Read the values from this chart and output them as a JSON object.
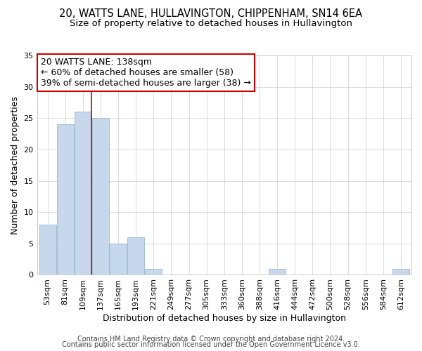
{
  "title": "20, WATTS LANE, HULLAVINGTON, CHIPPENHAM, SN14 6EA",
  "subtitle": "Size of property relative to detached houses in Hullavington",
  "xlabel": "Distribution of detached houses by size in Hullavington",
  "ylabel": "Number of detached properties",
  "bar_color": "#c8d8ec",
  "bar_edge_color": "#9ab8d0",
  "vline_color": "#cc0000",
  "vline_x": 3,
  "categories": [
    "53sqm",
    "81sqm",
    "109sqm",
    "137sqm",
    "165sqm",
    "193sqm",
    "221sqm",
    "249sqm",
    "277sqm",
    "305sqm",
    "333sqm",
    "360sqm",
    "388sqm",
    "416sqm",
    "444sqm",
    "472sqm",
    "500sqm",
    "528sqm",
    "556sqm",
    "584sqm",
    "612sqm"
  ],
  "values": [
    8,
    24,
    26,
    25,
    5,
    6,
    1,
    0,
    0,
    0,
    0,
    0,
    0,
    1,
    0,
    0,
    0,
    0,
    0,
    0,
    1
  ],
  "ylim": [
    0,
    35
  ],
  "yticks": [
    0,
    5,
    10,
    15,
    20,
    25,
    30,
    35
  ],
  "annotation_title": "20 WATTS LANE: 138sqm",
  "annotation_line1": "← 60% of detached houses are smaller (58)",
  "annotation_line2": "39% of semi-detached houses are larger (38) →",
  "annotation_box_edge": "#cc0000",
  "footer_line1": "Contains HM Land Registry data © Crown copyright and database right 2024.",
  "footer_line2": "Contains public sector information licensed under the Open Government Licence v3.0.",
  "title_fontsize": 10.5,
  "subtitle_fontsize": 9.5,
  "axis_label_fontsize": 9,
  "tick_fontsize": 8,
  "annotation_fontsize": 9,
  "footer_fontsize": 7
}
